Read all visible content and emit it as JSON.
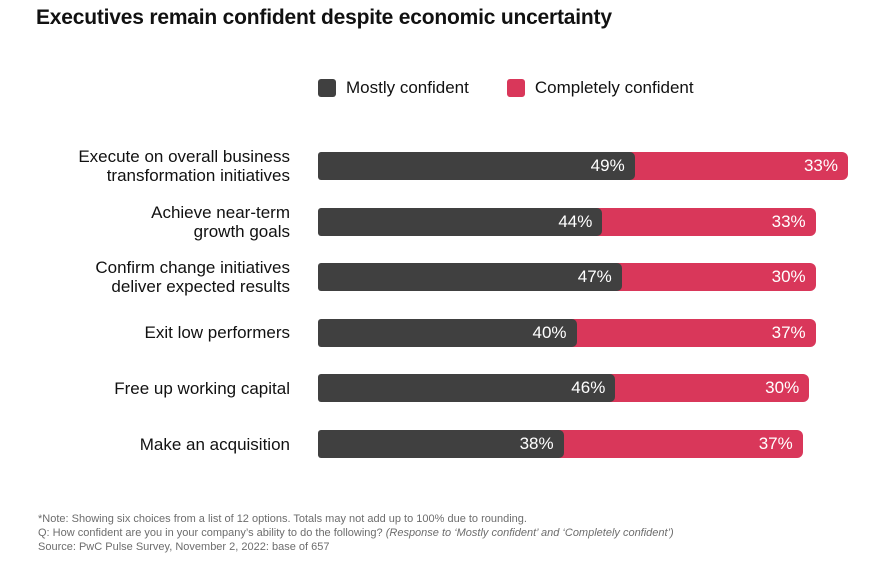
{
  "chart_data": {
    "type": "bar",
    "orientation": "horizontal",
    "stacked": true,
    "title": "Executives remain confident despite economic uncertainty",
    "categories": [
      [
        "Execute on overall business",
        "transformation initiatives"
      ],
      [
        "Achieve near-term",
        "growth goals"
      ],
      [
        "Confirm change initiatives",
        "deliver expected results"
      ],
      [
        "Exit low performers"
      ],
      [
        "Free up working capital"
      ],
      [
        "Make an acquisition"
      ]
    ],
    "series": [
      {
        "name": "Mostly confident",
        "values": [
          49,
          44,
          47,
          40,
          46,
          38
        ],
        "labels": [
          "49%",
          "44%",
          "47%",
          "40%",
          "46%",
          "38%"
        ],
        "color": "#404040"
      },
      {
        "name": "Completely confident",
        "values": [
          33,
          33,
          30,
          37,
          30,
          37
        ],
        "labels": [
          "33%",
          "33%",
          "30%",
          "37%",
          "30%",
          "37%"
        ],
        "color": "#d9375a"
      }
    ],
    "xlim": [
      0,
      82
    ],
    "legend_position": "top",
    "grid": false
  },
  "notes": {
    "note": "*Note: Showing six choices from a list of 12 options. Totals may not add up to 100% due to rounding.",
    "question": "Q: How confident are you in your company’s ability to do the following?",
    "question_italic": "(Response to ‘Mostly confident’ and ‘Completely confident’)",
    "source": "Source: PwC Pulse Survey, November 2, 2022: base of 657"
  }
}
